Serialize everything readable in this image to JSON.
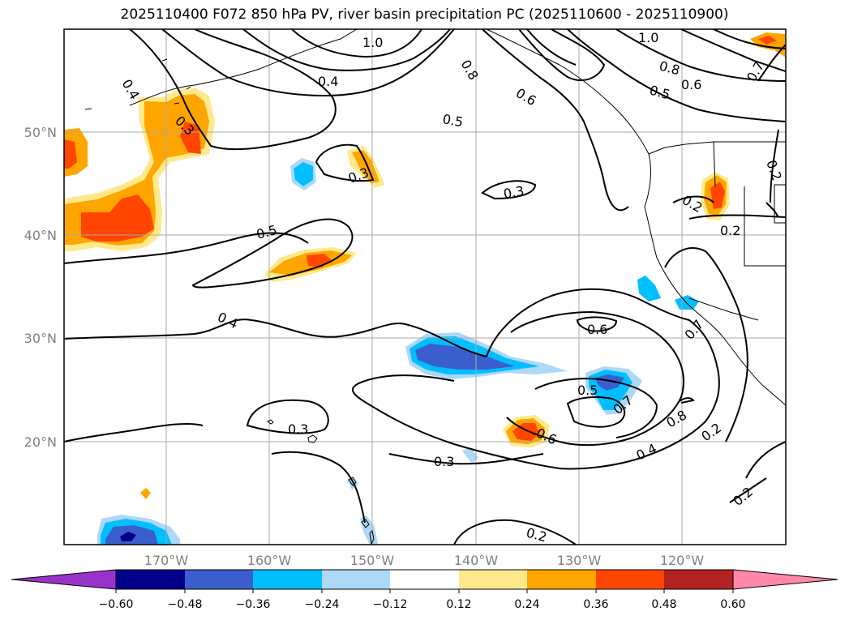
{
  "title": "2025110400 F072 850 hPa PV, river basin precipitation PC (2025110600 - 2025110900)",
  "lon_ticks": [
    "170°W",
    "160°W",
    "150°W",
    "140°W",
    "130°W",
    "120°W"
  ],
  "lat_ticks": [
    "50°N",
    "40°N",
    "30°N",
    "20°N"
  ],
  "contour_labels": [
    "1.0",
    "0.4",
    "0.3",
    "0.4",
    "0.3",
    "0.5",
    "0.4",
    "0.3",
    "0.3",
    "0.8",
    "0.6",
    "0.5",
    "0.3",
    "1.0",
    "0.8",
    "0.5",
    "0.6",
    "0.7",
    "0.2",
    "0.2",
    "0.2",
    "0.7",
    "0.6",
    "0.5",
    "0.7",
    "0.8",
    "0.6",
    "0.4",
    "0.2",
    "0.2",
    "0.2"
  ],
  "colorbar": {
    "ticks": [
      "−0.60",
      "−0.48",
      "−0.36",
      "−0.24",
      "−0.12",
      "0.12",
      "0.24",
      "0.36",
      "0.48",
      "0.60"
    ],
    "colors": [
      "#9932cc",
      "#00008b",
      "#3a5fcd",
      "#00bfff",
      "#add8f7",
      "#ffffff",
      "#ffe98a",
      "#ffa500",
      "#ff4500",
      "#b22222",
      "#ff87a8"
    ]
  }
}
